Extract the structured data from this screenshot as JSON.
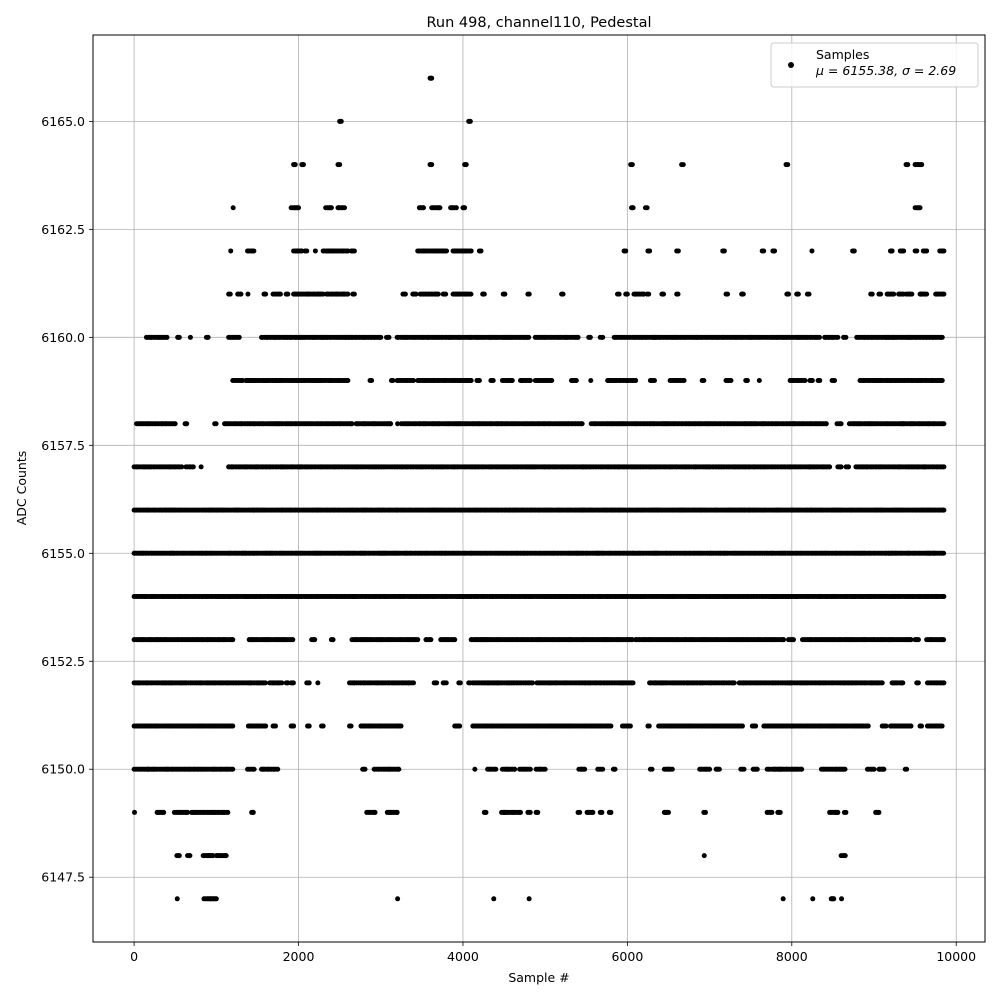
{
  "chart_data": {
    "type": "scatter",
    "title": "Run 498, channel110, Pedestal",
    "xlabel": "Sample #",
    "ylabel": "ADC Counts",
    "xlim": [
      -500,
      10350
    ],
    "ylim": [
      6146.0,
      6167.0
    ],
    "xticks": [
      0,
      2000,
      4000,
      6000,
      8000,
      10000
    ],
    "xtick_labels": [
      "0",
      "2000",
      "4000",
      "6000",
      "8000",
      "10000"
    ],
    "yticks": [
      6147.5,
      6150.0,
      6152.5,
      6155.0,
      6157.5,
      6160.0,
      6162.5,
      6165.0
    ],
    "ytick_labels": [
      "6147.5",
      "6150.0",
      "6152.5",
      "6155.0",
      "6157.5",
      "6160.0",
      "6162.5",
      "6165.0"
    ],
    "grid": true,
    "legend_position": "top-right",
    "series": [
      {
        "name": "Samples",
        "stats_label": "μ = 6155.38, σ = 2.69",
        "color": "#000000",
        "marker": "dot",
        "x_range": [
          0,
          9850
        ],
        "levels": [
          6147,
          6148,
          6149,
          6150,
          6151,
          6152,
          6153,
          6154,
          6155,
          6156,
          6157,
          6158,
          6159,
          6160,
          6161,
          6162,
          6163,
          6164,
          6165,
          6166
        ],
        "x_segments": {
          "6147": [
            [
              520,
              530
            ],
            [
              850,
              1000
            ],
            [
              3200,
              3210
            ],
            [
              4370,
              4380
            ],
            [
              4800,
              4810
            ],
            [
              7890,
              7900
            ],
            [
              8250,
              8260
            ],
            [
              8480,
              8510
            ],
            [
              8600,
              8610
            ]
          ],
          "6148": [
            [
              520,
              550
            ],
            [
              650,
              680
            ],
            [
              840,
              960
            ],
            [
              1000,
              1120
            ],
            [
              6930,
              6940
            ],
            [
              8600,
              8650
            ]
          ],
          "6149": [
            [
              0,
              10
            ],
            [
              280,
              360
            ],
            [
              490,
              650
            ],
            [
              700,
              860
            ],
            [
              880,
              1140
            ],
            [
              1430,
              1450
            ],
            [
              2830,
              2930
            ],
            [
              3080,
              3200
            ],
            [
              4260,
              4280
            ],
            [
              4470,
              4700
            ],
            [
              4790,
              4820
            ],
            [
              4890,
              4910
            ],
            [
              5400,
              5420
            ],
            [
              5510,
              5580
            ],
            [
              5670,
              5690
            ],
            [
              5780,
              5800
            ],
            [
              6450,
              6500
            ],
            [
              6930,
              6950
            ],
            [
              7700,
              7760
            ],
            [
              7830,
              7860
            ],
            [
              8460,
              8560
            ],
            [
              8640,
              8660
            ],
            [
              9020,
              9060
            ]
          ],
          "6150": [
            [
              0,
              1200
            ],
            [
              1380,
              1460
            ],
            [
              1550,
              1750
            ],
            [
              2780,
              2810
            ],
            [
              2920,
              3220
            ],
            [
              4140,
              4150
            ],
            [
              4300,
              4400
            ],
            [
              4480,
              4630
            ],
            [
              4690,
              4820
            ],
            [
              4890,
              5000
            ],
            [
              5410,
              5480
            ],
            [
              5640,
              5700
            ],
            [
              5830,
              5850
            ],
            [
              6280,
              6300
            ],
            [
              6450,
              6550
            ],
            [
              6880,
              7000
            ],
            [
              7080,
              7120
            ],
            [
              7380,
              7420
            ],
            [
              7530,
              7580
            ],
            [
              7700,
              7730
            ],
            [
              7760,
              8120
            ],
            [
              8360,
              8650
            ],
            [
              8920,
              9000
            ],
            [
              9060,
              9120
            ],
            [
              9380,
              9400
            ]
          ],
          "6151": [
            [
              0,
              1200
            ],
            [
              1390,
              1600
            ],
            [
              1690,
              1720
            ],
            [
              1910,
              1940
            ],
            [
              2110,
              2130
            ],
            [
              2280,
              2300
            ],
            [
              2620,
              2640
            ],
            [
              2760,
              3250
            ],
            [
              3900,
              3960
            ],
            [
              4120,
              5800
            ],
            [
              5940,
              6040
            ],
            [
              6250,
              6270
            ],
            [
              6380,
              7400
            ],
            [
              7520,
              7560
            ],
            [
              7660,
              8500
            ],
            [
              8500,
              8930
            ],
            [
              9100,
              9150
            ],
            [
              9200,
              9450
            ],
            [
              9560,
              9580
            ],
            [
              9650,
              9830
            ]
          ],
          "6152": [
            [
              0,
              1600
            ],
            [
              1650,
              1800
            ],
            [
              1850,
              1870
            ],
            [
              1910,
              1940
            ],
            [
              2100,
              2130
            ],
            [
              2230,
              2240
            ],
            [
              2620,
              3400
            ],
            [
              3650,
              3680
            ],
            [
              3760,
              3800
            ],
            [
              3950,
              3970
            ],
            [
              4070,
              4090
            ],
            [
              4120,
              4850
            ],
            [
              4900,
              6070
            ],
            [
              6270,
              7300
            ],
            [
              7360,
              9100
            ],
            [
              9220,
              9350
            ],
            [
              9520,
              9540
            ],
            [
              9650,
              9850
            ]
          ],
          "6153": [
            [
              0,
              1200
            ],
            [
              1400,
              1930
            ],
            [
              2160,
              2200
            ],
            [
              2400,
              2420
            ],
            [
              2650,
              3450
            ],
            [
              3550,
              3610
            ],
            [
              3730,
              3900
            ],
            [
              4100,
              6060
            ],
            [
              6100,
              7900
            ],
            [
              7960,
              8020
            ],
            [
              8130,
              9450
            ],
            [
              9500,
              9540
            ],
            [
              9640,
              9850
            ]
          ],
          "6154": [
            [
              0,
              9850
            ]
          ],
          "6155": [
            [
              0,
              9850
            ]
          ],
          "6156": [
            [
              0,
              9850
            ]
          ],
          "6157": [
            [
              0,
              580
            ],
            [
              630,
              720
            ],
            [
              810,
              820
            ],
            [
              1150,
              1180
            ],
            [
              1190,
              8460
            ],
            [
              8560,
              8600
            ],
            [
              8660,
              8690
            ],
            [
              8780,
              9850
            ]
          ],
          "6158": [
            [
              30,
              500
            ],
            [
              620,
              640
            ],
            [
              980,
              1000
            ],
            [
              1100,
              2650
            ],
            [
              2700,
              3120
            ],
            [
              3200,
              3210
            ],
            [
              3250,
              5450
            ],
            [
              5560,
              8420
            ],
            [
              8550,
              8600
            ],
            [
              8700,
              9850
            ]
          ],
          "6159": [
            [
              1200,
              1320
            ],
            [
              1360,
              2600
            ],
            [
              2870,
              2890
            ],
            [
              3130,
              3150
            ],
            [
              3200,
              3400
            ],
            [
              3450,
              3700
            ],
            [
              3720,
              4100
            ],
            [
              4170,
              4200
            ],
            [
              4340,
              4370
            ],
            [
              4480,
              4600
            ],
            [
              4700,
              4820
            ],
            [
              4880,
              5080
            ],
            [
              5320,
              5380
            ],
            [
              5550,
              5560
            ],
            [
              5760,
              6100
            ],
            [
              6280,
              6330
            ],
            [
              6520,
              6690
            ],
            [
              6910,
              6930
            ],
            [
              7200,
              7260
            ],
            [
              7440,
              7460
            ],
            [
              7600,
              7610
            ],
            [
              7980,
              8160
            ],
            [
              8220,
              8250
            ],
            [
              8320,
              8340
            ],
            [
              8490,
              8520
            ],
            [
              8830,
              9830
            ]
          ],
          "6160": [
            [
              150,
              400
            ],
            [
              530,
              550
            ],
            [
              680,
              690
            ],
            [
              880,
              900
            ],
            [
              1150,
              1280
            ],
            [
              1550,
              3000
            ],
            [
              3070,
              3100
            ],
            [
              3200,
              4800
            ],
            [
              4880,
              5400
            ],
            [
              5530,
              5550
            ],
            [
              5670,
              5700
            ],
            [
              5840,
              8340
            ],
            [
              8400,
              8560
            ],
            [
              8630,
              8660
            ],
            [
              8790,
              9830
            ]
          ],
          "6161": [
            [
              1150,
              1170
            ],
            [
              1260,
              1300
            ],
            [
              1380,
              1390
            ],
            [
              1580,
              1600
            ],
            [
              1690,
              1780
            ],
            [
              1850,
              1870
            ],
            [
              1940,
              2300
            ],
            [
              2340,
              2600
            ],
            [
              2660,
              2680
            ],
            [
              3270,
              3300
            ],
            [
              3390,
              3430
            ],
            [
              3480,
              3700
            ],
            [
              3760,
              3790
            ],
            [
              3880,
              4100
            ],
            [
              4240,
              4260
            ],
            [
              4490,
              4510
            ],
            [
              4790,
              4810
            ],
            [
              5200,
              5220
            ],
            [
              5880,
              5900
            ],
            [
              5980,
              6000
            ],
            [
              6080,
              6200
            ],
            [
              6240,
              6260
            ],
            [
              6420,
              6440
            ],
            [
              6600,
              6620
            ],
            [
              7200,
              7220
            ],
            [
              7390,
              7410
            ],
            [
              7940,
              7960
            ],
            [
              8060,
              8080
            ],
            [
              8190,
              8210
            ],
            [
              8960,
              8980
            ],
            [
              9060,
              9080
            ],
            [
              9160,
              9240
            ],
            [
              9300,
              9360
            ],
            [
              9390,
              9460
            ],
            [
              9560,
              9640
            ],
            [
              9750,
              9850
            ]
          ],
          "6162": [
            [
              1170,
              1180
            ],
            [
              1380,
              1460
            ],
            [
              1940,
              2040
            ],
            [
              2080,
              2100
            ],
            [
              2200,
              2210
            ],
            [
              2300,
              2600
            ],
            [
              2640,
              2680
            ],
            [
              3450,
              3800
            ],
            [
              3880,
              4100
            ],
            [
              4200,
              4220
            ],
            [
              5960,
              5980
            ],
            [
              6250,
              6270
            ],
            [
              6600,
              6620
            ],
            [
              7160,
              7180
            ],
            [
              7640,
              7660
            ],
            [
              7770,
              7790
            ],
            [
              8240,
              8250
            ],
            [
              8740,
              8760
            ],
            [
              9200,
              9220
            ],
            [
              9320,
              9360
            ],
            [
              9500,
              9520
            ],
            [
              9600,
              9640
            ],
            [
              9800,
              9850
            ]
          ],
          "6163": [
            [
              1200,
              1210
            ],
            [
              1910,
              2000
            ],
            [
              2330,
              2400
            ],
            [
              2480,
              2560
            ],
            [
              3470,
              3520
            ],
            [
              3620,
              3720
            ],
            [
              3850,
              3920
            ],
            [
              4000,
              4020
            ],
            [
              6050,
              6070
            ],
            [
              6220,
              6240
            ],
            [
              9500,
              9560
            ]
          ],
          "6164": [
            [
              1940,
              1960
            ],
            [
              2040,
              2060
            ],
            [
              2480,
              2500
            ],
            [
              3600,
              3620
            ],
            [
              4020,
              4040
            ],
            [
              6040,
              6060
            ],
            [
              6660,
              6680
            ],
            [
              7930,
              7950
            ],
            [
              9390,
              9410
            ],
            [
              9500,
              9580
            ]
          ],
          "6165": [
            [
              2500,
              2520
            ],
            [
              4070,
              4090
            ]
          ],
          "6166": [
            [
              3600,
              3620
            ]
          ]
        }
      }
    ]
  }
}
